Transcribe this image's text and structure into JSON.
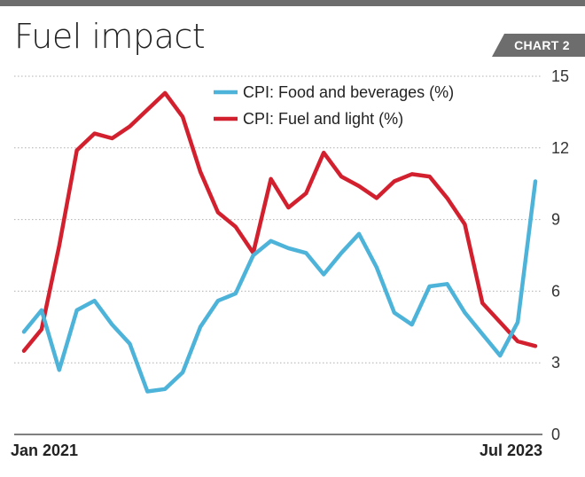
{
  "header": {
    "title": "Fuel impact",
    "badge": "CHART 2"
  },
  "colors": {
    "food": "#4db3d9",
    "fuel": "#d3202e",
    "grid": "#b0b0b0",
    "axis": "#555555"
  },
  "chart_data": {
    "type": "line",
    "title": "Fuel impact",
    "xlabel": "",
    "ylabel": "",
    "x_tick_labels": [
      "Jan 2021",
      "Jul 2023"
    ],
    "x_tick_index": [
      0,
      30
    ],
    "y_ticks": [
      0,
      3,
      6,
      9,
      12,
      15
    ],
    "ylim": [
      0,
      15
    ],
    "grid": true,
    "y_axis_side": "right",
    "legend_position": "top-center",
    "series": [
      {
        "name": "CPI: Food and beverages (%)",
        "color_key": "food",
        "values": [
          4.3,
          5.2,
          2.7,
          5.2,
          5.6,
          4.6,
          3.8,
          1.8,
          1.9,
          2.6,
          4.5,
          5.6,
          5.9,
          7.5,
          8.1,
          7.8,
          7.6,
          6.7,
          7.6,
          8.4,
          7.0,
          5.1,
          4.6,
          6.2,
          6.3,
          5.1,
          4.2,
          3.3,
          4.7,
          10.6
        ]
      },
      {
        "name": "CPI: Fuel and light (%)",
        "color_key": "fuel",
        "values": [
          3.5,
          4.4,
          7.9,
          11.9,
          12.6,
          12.4,
          12.9,
          13.6,
          14.3,
          13.3,
          11.0,
          9.3,
          8.7,
          7.6,
          10.7,
          9.5,
          10.1,
          11.8,
          10.8,
          10.4,
          9.9,
          10.6,
          10.9,
          10.8,
          9.9,
          8.8,
          5.5,
          4.7,
          3.9,
          3.7
        ]
      }
    ]
  }
}
